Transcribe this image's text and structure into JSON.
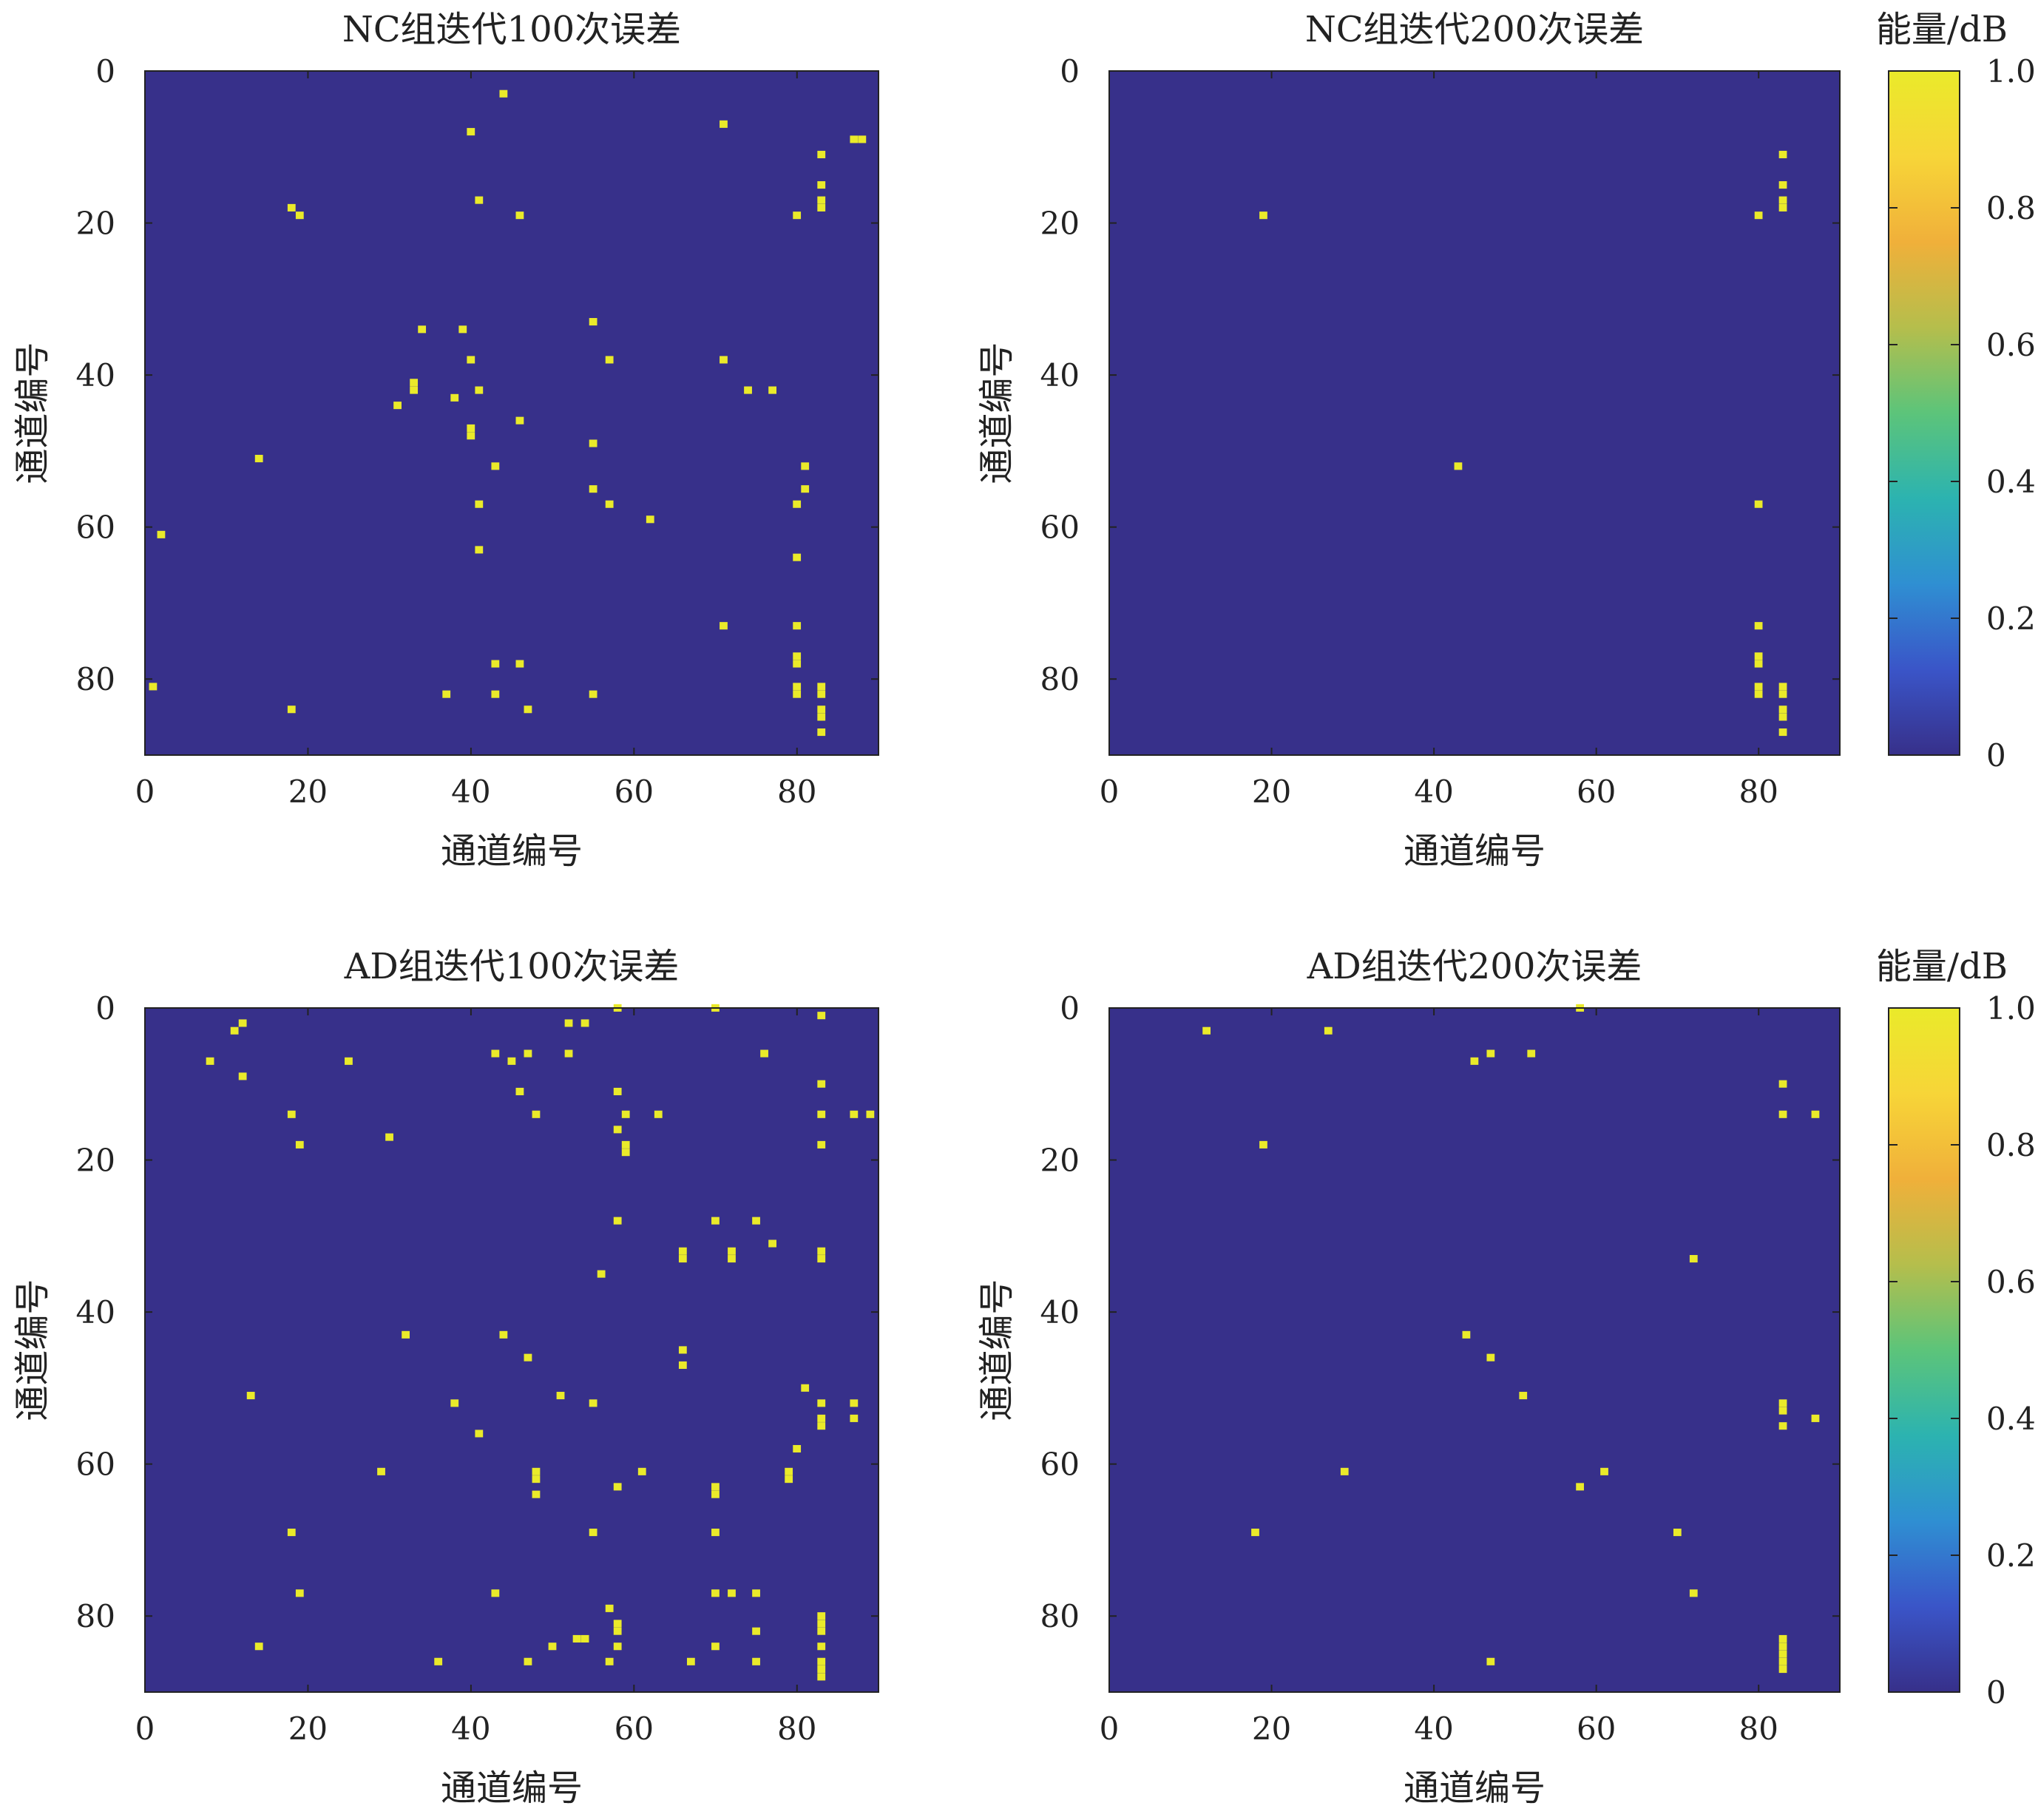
{
  "colors": {
    "background": "#37308a",
    "hit": "#eaea2a",
    "colorbar_stops": [
      "#37308a",
      "#3a55c8",
      "#2f8fd2",
      "#2cb3b0",
      "#5cc47a",
      "#b5be4c",
      "#f0b03a",
      "#f7d538",
      "#eaea2a"
    ]
  },
  "chart_data": [
    {
      "type": "heatmap",
      "title": "NC组迭代100次误差",
      "xlabel": "通道编号",
      "ylabel": "通道编号",
      "xlim": [
        0,
        90
      ],
      "ylim": [
        0,
        90
      ],
      "y_inverted": true,
      "xticks": [
        "0",
        "20",
        "40",
        "60",
        "80"
      ],
      "yticks": [
        "0",
        "20",
        "40",
        "60",
        "80"
      ],
      "value_range": [
        0,
        1
      ],
      "points": [
        [
          44,
          3
        ],
        [
          71,
          7
        ],
        [
          40,
          8
        ],
        [
          87,
          9
        ],
        [
          88,
          9
        ],
        [
          83,
          11
        ],
        [
          83,
          15
        ],
        [
          41,
          17
        ],
        [
          83,
          17
        ],
        [
          18,
          18
        ],
        [
          83,
          18
        ],
        [
          19,
          19
        ],
        [
          46,
          19
        ],
        [
          80,
          19
        ],
        [
          55,
          33
        ],
        [
          34,
          34
        ],
        [
          39,
          34
        ],
        [
          40,
          38
        ],
        [
          57,
          38
        ],
        [
          71,
          38
        ],
        [
          33,
          41
        ],
        [
          33,
          42
        ],
        [
          41,
          42
        ],
        [
          74,
          42
        ],
        [
          77,
          42
        ],
        [
          38,
          43
        ],
        [
          31,
          44
        ],
        [
          46,
          46
        ],
        [
          40,
          47
        ],
        [
          40,
          48
        ],
        [
          55,
          49
        ],
        [
          14,
          51
        ],
        [
          43,
          52
        ],
        [
          81,
          52
        ],
        [
          55,
          55
        ],
        [
          81,
          55
        ],
        [
          41,
          57
        ],
        [
          57,
          57
        ],
        [
          80,
          57
        ],
        [
          62,
          59
        ],
        [
          2,
          61
        ],
        [
          41,
          63
        ],
        [
          80,
          64
        ],
        [
          71,
          73
        ],
        [
          80,
          73
        ],
        [
          80,
          77
        ],
        [
          80,
          78
        ],
        [
          43,
          78
        ],
        [
          46,
          78
        ],
        [
          80,
          81
        ],
        [
          83,
          81
        ],
        [
          1,
          81
        ],
        [
          80,
          82
        ],
        [
          83,
          82
        ],
        [
          37,
          82
        ],
        [
          43,
          82
        ],
        [
          55,
          82
        ],
        [
          83,
          84
        ],
        [
          18,
          84
        ],
        [
          47,
          84
        ],
        [
          83,
          85
        ],
        [
          83,
          87
        ]
      ]
    },
    {
      "type": "heatmap",
      "title": "NC组迭代200次误差",
      "xlabel": "通道编号",
      "ylabel": "通道编号",
      "xlim": [
        0,
        90
      ],
      "ylim": [
        0,
        90
      ],
      "y_inverted": true,
      "xticks": [
        "0",
        "20",
        "40",
        "60",
        "80"
      ],
      "yticks": [
        "0",
        "20",
        "40",
        "60",
        "80"
      ],
      "value_range": [
        0,
        1
      ],
      "colorbar": {
        "label": "能量/dB",
        "ticks": [
          "0",
          "0.2",
          "0.4",
          "0.6",
          "0.8",
          "1.0"
        ]
      },
      "points": [
        [
          83,
          11
        ],
        [
          83,
          15
        ],
        [
          83,
          17
        ],
        [
          83,
          18
        ],
        [
          19,
          19
        ],
        [
          80,
          19
        ],
        [
          43,
          52
        ],
        [
          80,
          57
        ],
        [
          80,
          73
        ],
        [
          80,
          77
        ],
        [
          80,
          78
        ],
        [
          80,
          81
        ],
        [
          83,
          81
        ],
        [
          80,
          82
        ],
        [
          83,
          82
        ],
        [
          83,
          84
        ],
        [
          83,
          85
        ],
        [
          83,
          87
        ]
      ]
    },
    {
      "type": "heatmap",
      "title": "AD组迭代100次误差",
      "xlabel": "通道编号",
      "ylabel": "通道编号",
      "xlim": [
        0,
        90
      ],
      "ylim": [
        0,
        90
      ],
      "y_inverted": true,
      "xticks": [
        "0",
        "20",
        "40",
        "60",
        "80"
      ],
      "yticks": [
        "0",
        "20",
        "40",
        "60",
        "80"
      ],
      "value_range": [
        0,
        1
      ],
      "points": [
        [
          58,
          0
        ],
        [
          70,
          0
        ],
        [
          83,
          1
        ],
        [
          12,
          2
        ],
        [
          52,
          2
        ],
        [
          54,
          2
        ],
        [
          11,
          3
        ],
        [
          43,
          6
        ],
        [
          47,
          6
        ],
        [
          52,
          6
        ],
        [
          76,
          6
        ],
        [
          8,
          7
        ],
        [
          25,
          7
        ],
        [
          45,
          7
        ],
        [
          12,
          9
        ],
        [
          58,
          11
        ],
        [
          83,
          10
        ],
        [
          46,
          11
        ],
        [
          18,
          14
        ],
        [
          48,
          14
        ],
        [
          59,
          14
        ],
        [
          63,
          14
        ],
        [
          83,
          14
        ],
        [
          87,
          14
        ],
        [
          89,
          14
        ],
        [
          58,
          16
        ],
        [
          30,
          17
        ],
        [
          19,
          18
        ],
        [
          59,
          18
        ],
        [
          59,
          19
        ],
        [
          83,
          18
        ],
        [
          58,
          28
        ],
        [
          70,
          28
        ],
        [
          75,
          28
        ],
        [
          77,
          31
        ],
        [
          66,
          32
        ],
        [
          72,
          32
        ],
        [
          83,
          32
        ],
        [
          66,
          33
        ],
        [
          72,
          33
        ],
        [
          83,
          33
        ],
        [
          56,
          35
        ],
        [
          32,
          43
        ],
        [
          44,
          43
        ],
        [
          66,
          45
        ],
        [
          47,
          46
        ],
        [
          66,
          47
        ],
        [
          81,
          50
        ],
        [
          13,
          51
        ],
        [
          51,
          51
        ],
        [
          38,
          52
        ],
        [
          55,
          52
        ],
        [
          83,
          52
        ],
        [
          87,
          52
        ],
        [
          83,
          54
        ],
        [
          87,
          54
        ],
        [
          83,
          55
        ],
        [
          41,
          56
        ],
        [
          80,
          58
        ],
        [
          29,
          61
        ],
        [
          48,
          61
        ],
        [
          61,
          61
        ],
        [
          79,
          61
        ],
        [
          48,
          62
        ],
        [
          79,
          62
        ],
        [
          58,
          63
        ],
        [
          70,
          63
        ],
        [
          48,
          64
        ],
        [
          70,
          64
        ],
        [
          18,
          69
        ],
        [
          55,
          69
        ],
        [
          70,
          69
        ],
        [
          19,
          77
        ],
        [
          43,
          77
        ],
        [
          70,
          77
        ],
        [
          72,
          77
        ],
        [
          75,
          77
        ],
        [
          57,
          79
        ],
        [
          83,
          80
        ],
        [
          58,
          81
        ],
        [
          83,
          81
        ],
        [
          58,
          82
        ],
        [
          75,
          82
        ],
        [
          53,
          83
        ],
        [
          54,
          83
        ],
        [
          83,
          82
        ],
        [
          14,
          84
        ],
        [
          50,
          84
        ],
        [
          58,
          84
        ],
        [
          70,
          84
        ],
        [
          83,
          84
        ],
        [
          36,
          86
        ],
        [
          47,
          86
        ],
        [
          57,
          86
        ],
        [
          67,
          86
        ],
        [
          75,
          86
        ],
        [
          83,
          86
        ],
        [
          83,
          87
        ],
        [
          83,
          88
        ]
      ]
    },
    {
      "type": "heatmap",
      "title": "AD组迭代200次误差",
      "xlabel": "通道编号",
      "ylabel": "通道编号",
      "xlim": [
        0,
        90
      ],
      "ylim": [
        0,
        90
      ],
      "y_inverted": true,
      "xticks": [
        "0",
        "20",
        "40",
        "60",
        "80"
      ],
      "yticks": [
        "0",
        "20",
        "40",
        "60",
        "80"
      ],
      "value_range": [
        0,
        1
      ],
      "colorbar": {
        "label": "能量/dB",
        "ticks": [
          "0",
          "0.2",
          "0.4",
          "0.6",
          "0.8",
          "1.0"
        ]
      },
      "points": [
        [
          58,
          0
        ],
        [
          12,
          3
        ],
        [
          27,
          3
        ],
        [
          47,
          6
        ],
        [
          52,
          6
        ],
        [
          45,
          7
        ],
        [
          83,
          10
        ],
        [
          83,
          14
        ],
        [
          87,
          14
        ],
        [
          19,
          18
        ],
        [
          72,
          33
        ],
        [
          44,
          43
        ],
        [
          47,
          46
        ],
        [
          51,
          51
        ],
        [
          83,
          52
        ],
        [
          83,
          53
        ],
        [
          87,
          54
        ],
        [
          83,
          55
        ],
        [
          29,
          61
        ],
        [
          61,
          61
        ],
        [
          58,
          63
        ],
        [
          18,
          69
        ],
        [
          70,
          69
        ],
        [
          72,
          77
        ],
        [
          83,
          83
        ],
        [
          83,
          84
        ],
        [
          83,
          85
        ],
        [
          47,
          86
        ],
        [
          83,
          86
        ],
        [
          83,
          87
        ]
      ]
    }
  ]
}
